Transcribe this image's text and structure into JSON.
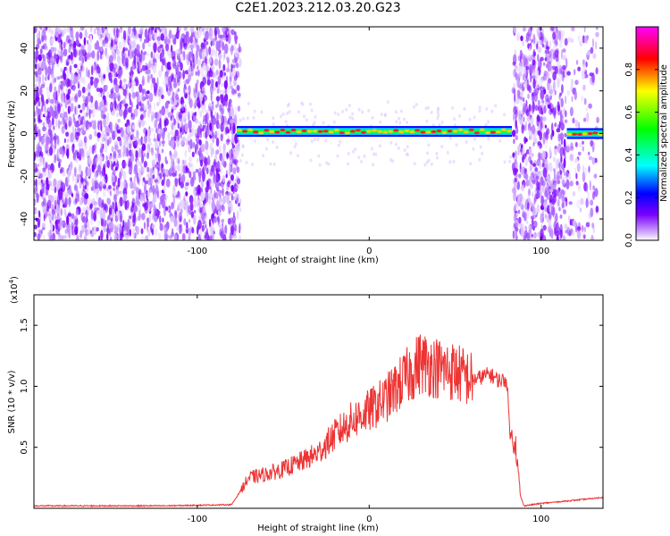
{
  "title": "C2E1.2023.212.03.20.G23",
  "chart_data": [
    {
      "type": "heatmap",
      "xlabel": "Height of straight line (km)",
      "ylabel": "Frequency (Hz)",
      "xlim": [
        -195,
        136
      ],
      "ylim": [
        -50,
        50
      ],
      "x_ticks": [
        -100,
        0,
        100
      ],
      "y_ticks": [
        -40,
        -20,
        0,
        20,
        40
      ],
      "colorbar": {
        "label": "Normalized spectral amplitude",
        "range": [
          0,
          1
        ],
        "ticks": [
          "0.0",
          "0.2",
          "0.4",
          "0.6",
          "0.8"
        ]
      },
      "noise_regions": [
        {
          "x_start": -195,
          "x_end": -75
        },
        {
          "x_start": 84,
          "x_end": 114
        },
        {
          "x_start": 114,
          "x_end": 133,
          "density": "sparse"
        }
      ],
      "signal_band": [
        {
          "x_start": -77,
          "x_end": 83,
          "center_freq": 1.0,
          "note": "strong band with peaks ~0.9"
        },
        {
          "x_start": 115,
          "x_end": 136,
          "center_freq": 0.0
        }
      ],
      "colors": {
        "background": "#ffffff",
        "noise": "#7a00ff"
      }
    },
    {
      "type": "line",
      "xlabel": "Height of straight line (km)",
      "ylabel": "SNR (10 * v/v)",
      "multiplier": "(x10^4)",
      "xlim": [
        -195,
        136
      ],
      "ylim": [
        0,
        1.75
      ],
      "x_ticks": [
        -100,
        0,
        100
      ],
      "y_ticks": [
        "0.5",
        "1.0",
        "1.5"
      ],
      "series": [
        {
          "color": "#ee3333",
          "x": [
            -195,
            -120,
            -80,
            -70,
            -60,
            -50,
            -40,
            -30,
            -20,
            -10,
            0,
            10,
            20,
            30,
            40,
            50,
            60,
            70,
            75,
            80,
            82,
            85,
            88,
            90,
            100,
            115,
            130,
            136
          ],
          "y": [
            0.02,
            0.02,
            0.03,
            0.25,
            0.28,
            0.32,
            0.38,
            0.45,
            0.6,
            0.72,
            0.8,
            0.9,
            1.05,
            1.2,
            1.15,
            1.12,
            1.05,
            1.1,
            1.05,
            1.05,
            0.6,
            0.55,
            0.1,
            0.02,
            0.04,
            0.06,
            0.08,
            0.09
          ]
        }
      ]
    }
  ]
}
